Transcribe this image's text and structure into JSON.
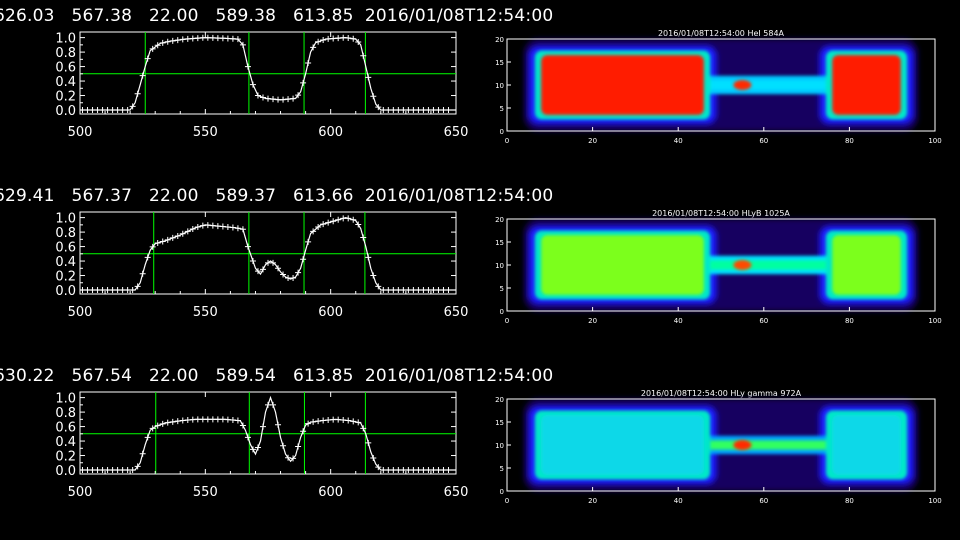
{
  "colors": {
    "background": "#000000",
    "axis": "#ffffff",
    "curve": "#ffffff",
    "guide": "#00ff00"
  },
  "rows": [
    {
      "header": "626.03   567.38   22.00   589.38   613.85  2016/01/08T12:54:00",
      "line_chart": {
        "type": "line",
        "xlim": [
          500,
          650
        ],
        "ylim": [
          0,
          1.05
        ],
        "xticks": [
          500,
          550,
          600,
          650
        ],
        "yticks": [
          0.0,
          0.2,
          0.4,
          0.6,
          0.8,
          1.0
        ],
        "xtick_labels": [
          "500",
          "550",
          "600",
          "650"
        ],
        "ytick_labels": [
          "0.0",
          "0.2",
          "0.4",
          "0.6",
          "0.8",
          "1.0"
        ],
        "hline": 0.5,
        "vlines": [
          526.03,
          567.38,
          589.38,
          613.85
        ],
        "x": [
          500,
          520,
          522,
          524,
          526,
          528,
          532,
          536,
          542,
          550,
          558,
          563,
          565,
          567,
          569,
          571,
          574,
          580,
          586,
          588,
          590,
          592,
          594,
          598,
          606,
          610,
          612,
          614,
          616,
          618,
          620,
          650
        ],
        "y": [
          0.0,
          0.0,
          0.1,
          0.35,
          0.6,
          0.82,
          0.92,
          0.95,
          0.98,
          1.0,
          0.99,
          0.98,
          0.9,
          0.6,
          0.35,
          0.2,
          0.16,
          0.14,
          0.16,
          0.25,
          0.5,
          0.8,
          0.93,
          0.98,
          1.0,
          0.98,
          0.9,
          0.6,
          0.3,
          0.08,
          0.0,
          0.0
        ]
      },
      "image": {
        "title": "2016/01/08T12:54:00 HeI 584A",
        "xticks": [
          "0",
          "20",
          "40",
          "60",
          "80",
          "100"
        ],
        "yticks": [
          "0",
          "5",
          "10",
          "15",
          "20"
        ],
        "xlim": [
          0,
          100
        ],
        "ylim": [
          0,
          20
        ],
        "lobe_color": "#ff1a00",
        "core_color": "#ff2a00",
        "bridge_color": "#00c8ff",
        "bridge_lobe_color": "#00e0ff"
      }
    },
    {
      "header": "629.41   567.37   22.00   589.37   613.66  2016/01/08T12:54:00",
      "line_chart": {
        "type": "line",
        "xlim": [
          500,
          650
        ],
        "ylim": [
          0,
          1.05
        ],
        "xticks": [
          500,
          550,
          600,
          650
        ],
        "yticks": [
          0.0,
          0.2,
          0.4,
          0.6,
          0.8,
          1.0
        ],
        "xtick_labels": [
          "500",
          "550",
          "600",
          "650"
        ],
        "ytick_labels": [
          "0.0",
          "0.2",
          "0.4",
          "0.6",
          "0.8",
          "1.0"
        ],
        "hline": 0.5,
        "vlines": [
          529.41,
          567.37,
          589.37,
          613.66
        ],
        "x": [
          500,
          522,
          524,
          526,
          528,
          530,
          534,
          540,
          546,
          550,
          556,
          562,
          565,
          567,
          570,
          572,
          574,
          576,
          578,
          580,
          582,
          584,
          586,
          588,
          590,
          592,
          596,
          602,
          606,
          610,
          612,
          614,
          616,
          618,
          620,
          650
        ],
        "y": [
          0.0,
          0.0,
          0.1,
          0.35,
          0.55,
          0.64,
          0.68,
          0.76,
          0.86,
          0.9,
          0.88,
          0.86,
          0.84,
          0.6,
          0.3,
          0.22,
          0.35,
          0.4,
          0.35,
          0.25,
          0.18,
          0.15,
          0.18,
          0.3,
          0.55,
          0.78,
          0.9,
          0.96,
          1.0,
          0.96,
          0.85,
          0.6,
          0.3,
          0.1,
          0.0,
          0.0
        ]
      },
      "image": {
        "title": "2016/01/08T12:54:00 HLyB 1025A",
        "xticks": [
          "0",
          "20",
          "40",
          "60",
          "80",
          "100"
        ],
        "yticks": [
          "0",
          "5",
          "10",
          "15",
          "20"
        ],
        "xlim": [
          0,
          100
        ],
        "ylim": [
          0,
          20
        ],
        "lobe_color": "#7cff1a",
        "core_color": "#ff4a00",
        "bridge_color": "#00e0ff",
        "bridge_lobe_color": "#00ffa0"
      }
    },
    {
      "header": "630.22   567.54   22.00   589.54   613.85  2016/01/08T12:54:00",
      "line_chart": {
        "type": "line",
        "xlim": [
          500,
          650
        ],
        "ylim": [
          0,
          1.05
        ],
        "xticks": [
          500,
          550,
          600,
          650
        ],
        "yticks": [
          0.0,
          0.2,
          0.4,
          0.6,
          0.8,
          1.0
        ],
        "xtick_labels": [
          "500",
          "550",
          "600",
          "650"
        ],
        "ytick_labels": [
          "0.0",
          "0.2",
          "0.4",
          "0.6",
          "0.8",
          "1.0"
        ],
        "hline": 0.5,
        "vlines": [
          530.22,
          567.54,
          589.54,
          613.85
        ],
        "x": [
          500,
          522,
          524,
          526,
          528,
          530,
          534,
          540,
          546,
          552,
          558,
          564,
          566,
          568,
          570,
          572,
          574,
          576,
          578,
          580,
          582,
          584,
          586,
          588,
          590,
          592,
          596,
          602,
          608,
          612,
          614,
          616,
          618,
          620,
          650
        ],
        "y": [
          0.0,
          0.0,
          0.1,
          0.35,
          0.55,
          0.6,
          0.65,
          0.68,
          0.7,
          0.7,
          0.7,
          0.68,
          0.55,
          0.35,
          0.22,
          0.4,
          0.8,
          1.0,
          0.8,
          0.45,
          0.22,
          0.12,
          0.2,
          0.45,
          0.62,
          0.66,
          0.68,
          0.7,
          0.68,
          0.65,
          0.5,
          0.25,
          0.08,
          0.0,
          0.0
        ]
      },
      "image": {
        "title": "2016/01/08T12:54:00 HLy gamma 972A",
        "xticks": [
          "0",
          "20",
          "40",
          "60",
          "80",
          "100"
        ],
        "yticks": [
          "0",
          "5",
          "10",
          "15",
          "20"
        ],
        "xlim": [
          0,
          100
        ],
        "ylim": [
          0,
          20
        ],
        "lobe_color": "#10d8e8",
        "core_color": "#ff2a00",
        "bridge_color": "#00a0ff",
        "bridge_lobe_color": "#30ff60"
      }
    }
  ]
}
